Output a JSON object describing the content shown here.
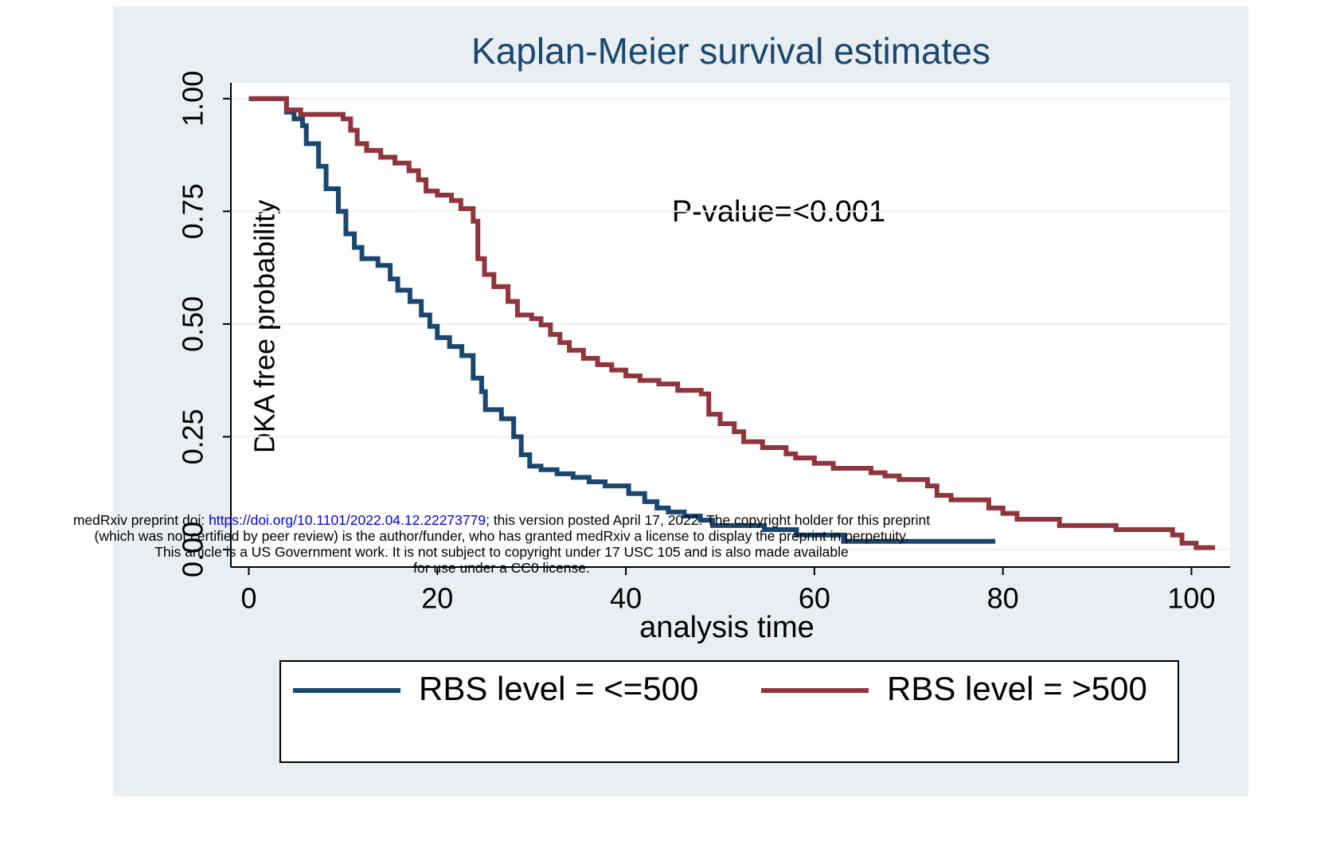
{
  "chart_data": {
    "type": "step",
    "title": "Kaplan-Meier survival estimates",
    "xlabel": "analysis time",
    "ylabel": "DKA free probability",
    "annotation": "P-value=<0.001",
    "xlim": [
      -1.9,
      104.1
    ],
    "ylim": [
      -0.039,
      1.035
    ],
    "xticks": [
      0,
      20,
      40,
      60,
      80,
      100
    ],
    "yticks": [
      {
        "value": 0,
        "label": "0.00"
      },
      {
        "value": 0.25,
        "label": "0.25"
      },
      {
        "value": 0.5,
        "label": "0.50"
      },
      {
        "value": 0.75,
        "label": "0.75"
      },
      {
        "value": 1,
        "label": "1.00"
      }
    ],
    "grid": true,
    "legend": "bottom",
    "series": [
      {
        "name": "RBS level = <=500",
        "color": "#1a476f",
        "x": [
          0,
          4.0,
          4.8,
          5.7,
          6.1,
          7.4,
          8.2,
          9.5,
          10.3,
          11.2,
          12.0,
          13.7,
          15.0,
          15.8,
          17.1,
          18.3,
          19.2,
          20.0,
          21.3,
          22.6,
          23.8,
          24.7,
          25.1,
          26.8,
          28.1,
          28.9,
          29.8,
          31.0,
          32.7,
          34.4,
          36.1,
          37.8,
          40.3,
          42.0,
          43.3,
          44.5,
          46.2,
          47.9,
          49.2,
          54.7,
          58.1,
          63.1,
          79.2
        ],
        "values": [
          1.0,
          0.97,
          0.955,
          0.94,
          0.9,
          0.85,
          0.8,
          0.75,
          0.7,
          0.67,
          0.645,
          0.63,
          0.6,
          0.575,
          0.55,
          0.52,
          0.495,
          0.47,
          0.45,
          0.43,
          0.38,
          0.35,
          0.31,
          0.29,
          0.25,
          0.21,
          0.185,
          0.177,
          0.168,
          0.16,
          0.15,
          0.141,
          0.124,
          0.106,
          0.092,
          0.083,
          0.074,
          0.065,
          0.053,
          0.044,
          0.032,
          0.018,
          0.018
        ]
      },
      {
        "name": "RBS level = >500",
        "color": "#90353b",
        "x": [
          0,
          4.0,
          5.5,
          10.0,
          10.8,
          11.5,
          12.5,
          14.0,
          15.5,
          17.0,
          18.0,
          18.8,
          20.0,
          21.5,
          22.5,
          23.8,
          24.3,
          25.0,
          26.0,
          27.5,
          28.5,
          30.0,
          31.0,
          32.0,
          33.0,
          34.0,
          35.5,
          37.0,
          38.5,
          40.0,
          41.5,
          43.5,
          45.5,
          48.0,
          48.8,
          50.0,
          51.5,
          52.5,
          54.5,
          57.0,
          58.0,
          60.0,
          62.0,
          66.0,
          67.5,
          69.0,
          72.0,
          73.0,
          74.5,
          78.5,
          80.0,
          81.5,
          86.0,
          92.0,
          98.0,
          99.0,
          100.5,
          102.5
        ],
        "values": [
          1.0,
          0.975,
          0.965,
          0.955,
          0.93,
          0.9,
          0.885,
          0.87,
          0.857,
          0.84,
          0.82,
          0.795,
          0.786,
          0.774,
          0.756,
          0.728,
          0.645,
          0.61,
          0.583,
          0.55,
          0.52,
          0.512,
          0.498,
          0.477,
          0.459,
          0.442,
          0.424,
          0.41,
          0.398,
          0.385,
          0.375,
          0.367,
          0.353,
          0.345,
          0.3,
          0.279,
          0.261,
          0.239,
          0.226,
          0.212,
          0.203,
          0.191,
          0.18,
          0.17,
          0.163,
          0.155,
          0.141,
          0.12,
          0.11,
          0.092,
          0.08,
          0.067,
          0.053,
          0.044,
          0.032,
          0.014,
          0.004,
          0.004
        ]
      }
    ]
  },
  "notice": {
    "line1_prefix": "medRxiv preprint doi: ",
    "doi": "https://doi.org/10.1101/2022.04.12.22273779",
    "line1_suffix": "; this version posted April 17, 2022. The copyright holder for this preprint",
    "line2": "(which was not certified by peer review) is the author/funder, who has granted medRxiv a license to display the preprint in perpetuity.",
    "line3": "This article is a US Government work. It is not subject to copyright under 17 USC 105 and is also made available",
    "line4": "for use under a CC0 license."
  }
}
